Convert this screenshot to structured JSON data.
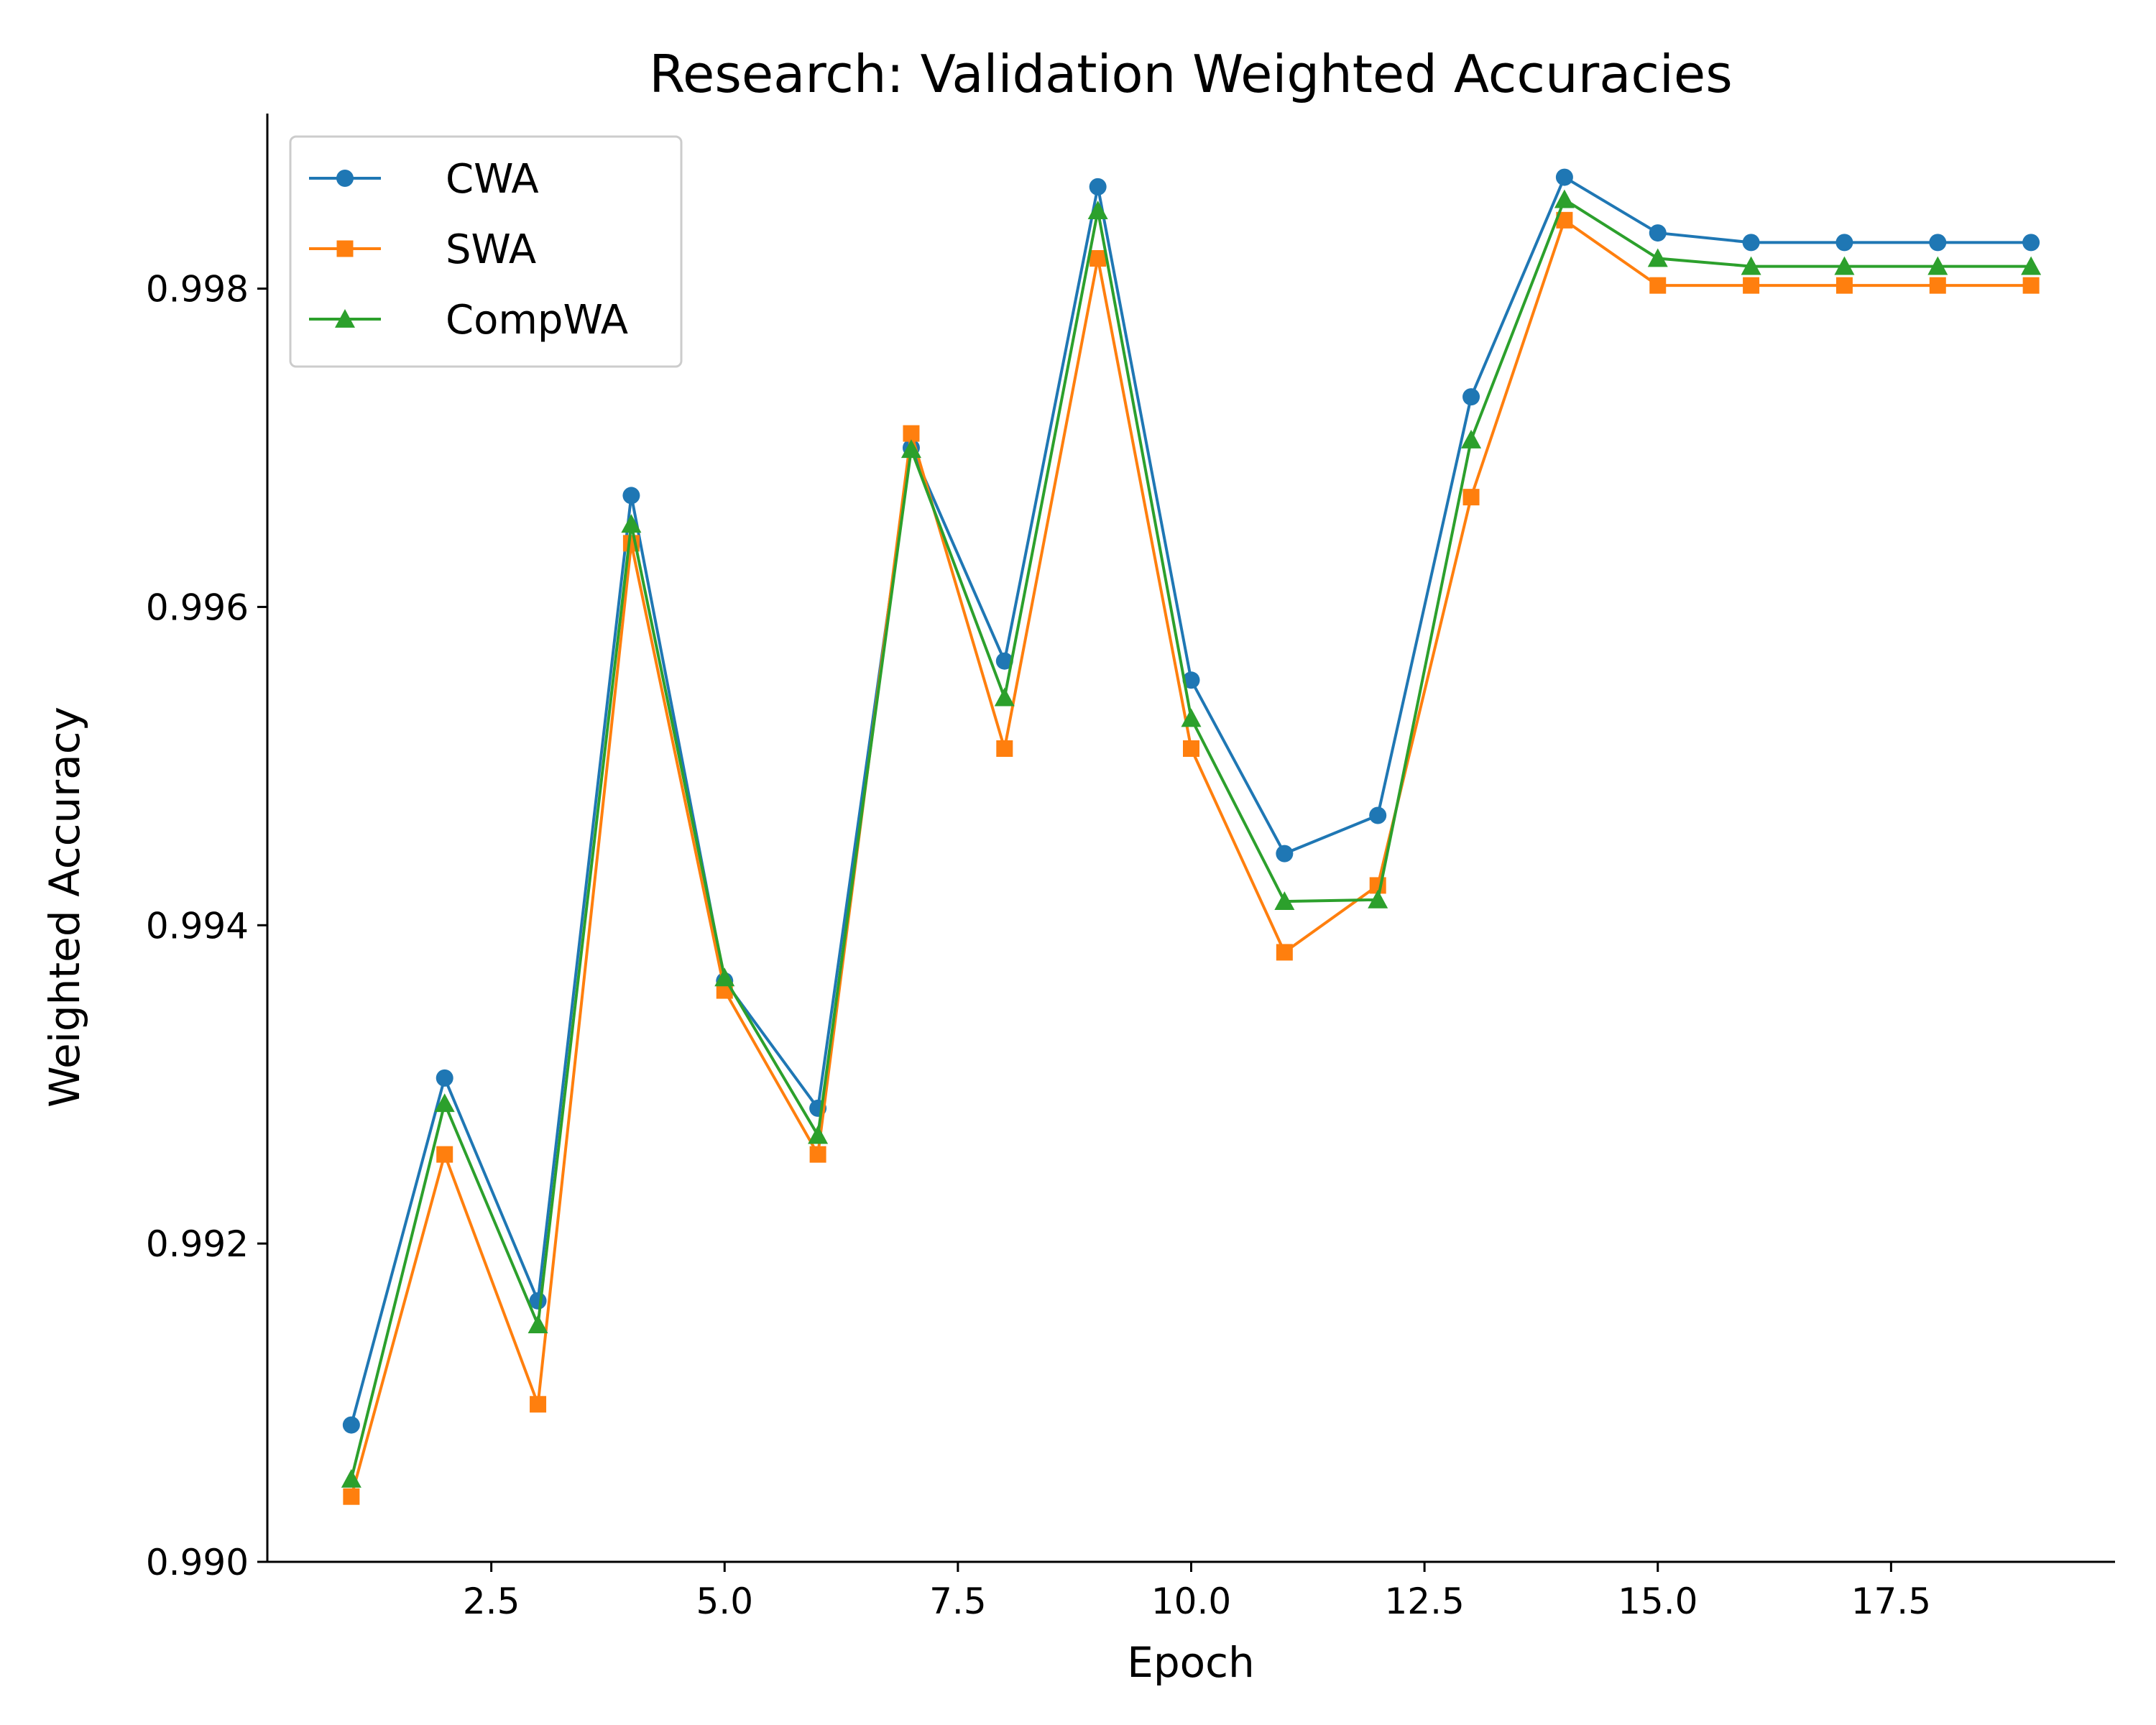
{
  "chart_data": {
    "type": "line",
    "title": "Research: Validation Weighted Accuracies",
    "xlabel": "Epoch",
    "ylabel": "Weighted Accuracy",
    "xlim": [
      0.1,
      19.9
    ],
    "ylim": [
      0.99,
      0.9991
    ],
    "x": [
      1,
      2,
      3,
      4,
      5,
      6,
      7,
      8,
      9,
      10,
      11,
      12,
      13,
      14,
      15,
      16,
      17,
      18,
      19
    ],
    "x_ticks": [
      2.5,
      5.0,
      7.5,
      10.0,
      12.5,
      15.0,
      17.5
    ],
    "x_tick_labels": [
      "2.5",
      "5.0",
      "7.5",
      "10.0",
      "12.5",
      "15.0",
      "17.5"
    ],
    "y_ticks": [
      0.99,
      0.992,
      0.994,
      0.996,
      0.998
    ],
    "y_tick_labels": [
      "0.990",
      "0.992",
      "0.994",
      "0.996",
      "0.998"
    ],
    "grid": false,
    "legend_position": "top-left",
    "series": [
      {
        "name": "CWA",
        "color": "#1f77b4",
        "marker": "circle",
        "values": [
          0.99086,
          0.99304,
          0.99164,
          0.9967,
          0.99365,
          0.99285,
          0.997,
          0.99566,
          0.99864,
          0.99554,
          0.99445,
          0.99469,
          0.99732,
          0.9987,
          0.99835,
          0.99829,
          0.99829,
          0.99829,
          0.99829
        ]
      },
      {
        "name": "SWA",
        "color": "#ff7f0e",
        "marker": "square",
        "values": [
          0.99041,
          0.99256,
          0.99099,
          0.9964,
          0.99359,
          0.99256,
          0.99709,
          0.99511,
          0.99819,
          0.99511,
          0.99383,
          0.99425,
          0.99669,
          0.99843,
          0.99802,
          0.99802,
          0.99802,
          0.99802,
          0.99802
        ]
      },
      {
        "name": "CompWA",
        "color": "#2ca02c",
        "marker": "triangle",
        "values": [
          0.99052,
          0.99288,
          0.99149,
          0.99652,
          0.99367,
          0.99268,
          0.99699,
          0.99543,
          0.99849,
          0.9953,
          0.99415,
          0.99416,
          0.99705,
          0.99856,
          0.99819,
          0.99814,
          0.99814,
          0.99814,
          0.99814
        ]
      }
    ]
  }
}
